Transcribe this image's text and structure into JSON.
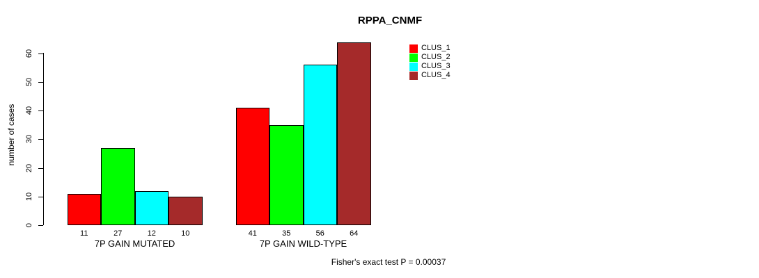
{
  "title": "RPPA_CNMF",
  "y_axis_label": "number of cases",
  "caption": "Fisher's exact test P = 0.00037",
  "chart_data": {
    "type": "bar",
    "title": "RPPA_CNMF",
    "xlabel": "",
    "ylabel": "number of cases",
    "categories": [
      "7P GAIN MUTATED",
      "7P GAIN WILD-TYPE"
    ],
    "series": [
      {
        "name": "CLUS_1",
        "color": "#ff0000",
        "values": [
          11,
          41
        ]
      },
      {
        "name": "CLUS_2",
        "color": "#00ff00",
        "values": [
          27,
          35
        ]
      },
      {
        "name": "CLUS_3",
        "color": "#00ffff",
        "values": [
          12,
          56
        ]
      },
      {
        "name": "CLUS_4",
        "color": "#a52a2a",
        "values": [
          10,
          64
        ]
      }
    ],
    "bar_value_labels": [
      [
        11,
        27,
        12,
        10
      ],
      [
        41,
        35,
        56,
        64
      ]
    ],
    "yticks": [
      0,
      10,
      20,
      30,
      40,
      50,
      60
    ],
    "ylim": [
      0,
      66
    ],
    "grid": false,
    "legend": {
      "position": "top-right",
      "entries": [
        "CLUS_1",
        "CLUS_2",
        "CLUS_3",
        "CLUS_4"
      ]
    },
    "annotation": "Fisher's exact test P = 0.00037"
  }
}
